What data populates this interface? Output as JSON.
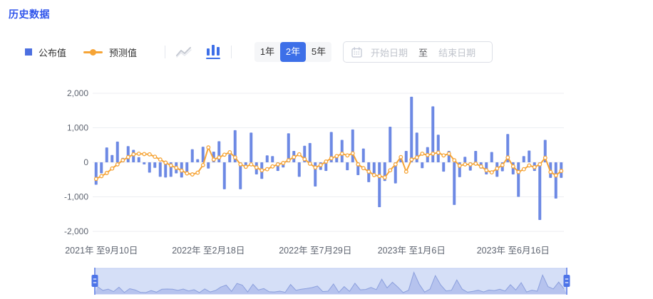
{
  "page": {
    "title": "历史数据"
  },
  "legend": {
    "published": {
      "label": "公布值"
    },
    "forecast": {
      "label": "预测值"
    }
  },
  "toolbar": {
    "chart_types": [
      {
        "name": "line-chart-icon",
        "active": false
      },
      {
        "name": "bar-chart-icon",
        "active": true
      }
    ],
    "ranges": [
      {
        "label": "1年",
        "active": false
      },
      {
        "label": "2年",
        "active": true
      },
      {
        "label": "5年",
        "active": false
      }
    ],
    "date_picker": {
      "start_placeholder": "开始日期",
      "separator": "至",
      "end_placeholder": "结束日期"
    }
  },
  "colors": {
    "title_blue": "#2f54eb",
    "bar_blue": "#6d89e4",
    "legend_blue": "#4c6fe0",
    "line_orange": "#f6a436",
    "grid_line": "#eceef2",
    "axis_text": "#5e6470",
    "active_button_bg": "#3d6fe8",
    "slider_track": "#d5dff7",
    "slider_area_fill": "#b3c0ec",
    "slider_area_line": "#8ca0dd",
    "slider_handle": "#4d74e8"
  },
  "chart_data": {
    "type": "bar",
    "title": "历史数据",
    "xlabel": "",
    "ylabel": "",
    "ylim": [
      -2000,
      2000
    ],
    "grid": true,
    "legend_position": "top-left",
    "y_ticks": [
      {
        "value": 2000,
        "label": "2,000"
      },
      {
        "value": 1000,
        "label": "1,000"
      },
      {
        "value": 0,
        "label": "0"
      },
      {
        "value": -1000,
        "label": "-1,000"
      },
      {
        "value": -2000,
        "label": "-2,000"
      }
    ],
    "x_tick_labels": [
      {
        "index": 1,
        "text": "2021年 至9月10日"
      },
      {
        "index": 21,
        "text": "2022年 至2月18日"
      },
      {
        "index": 41,
        "text": "2022年 至7月29日"
      },
      {
        "index": 59,
        "text": "2023年 至1月6日"
      },
      {
        "index": 78,
        "text": "2023年 至6月16日"
      }
    ],
    "series": [
      {
        "name": "公布值",
        "type": "bar",
        "color": "#6d89e4",
        "values": [
          -650,
          -320,
          430,
          210,
          600,
          130,
          470,
          360,
          150,
          -60,
          -300,
          -160,
          -420,
          -440,
          -420,
          -320,
          -440,
          -270,
          380,
          90,
          450,
          -180,
          310,
          610,
          -780,
          230,
          930,
          -780,
          -180,
          860,
          -350,
          -480,
          200,
          180,
          -250,
          -150,
          840,
          330,
          -420,
          480,
          560,
          -700,
          -220,
          -250,
          880,
          150,
          650,
          -230,
          950,
          -370,
          400,
          -575,
          -390,
          -1300,
          -540,
          1030,
          -610,
          110,
          330,
          1900,
          860,
          -170,
          440,
          1620,
          800,
          -270,
          330,
          -1235,
          -430,
          160,
          -240,
          330,
          -180,
          -350,
          300,
          -420,
          -260,
          820,
          -350,
          -1000,
          180,
          340,
          -250,
          -1670,
          650,
          -450,
          -1050,
          -450
        ]
      },
      {
        "name": "预测值",
        "type": "line",
        "color": "#f6a436",
        "values": [
          -480,
          -400,
          -310,
          -180,
          -60,
          60,
          150,
          230,
          250,
          240,
          230,
          160,
          80,
          -10,
          -90,
          -160,
          -240,
          -320,
          -350,
          -300,
          -80,
          430,
          80,
          140,
          220,
          290,
          140,
          -60,
          -130,
          -60,
          -150,
          -230,
          -200,
          -120,
          -60,
          -20,
          60,
          150,
          230,
          90,
          -40,
          -150,
          -80,
          20,
          120,
          180,
          250,
          200,
          260,
          -60,
          -170,
          -270,
          -370,
          -400,
          -440,
          -230,
          -60,
          150,
          -270,
          80,
          140,
          250,
          210,
          250,
          280,
          200,
          250,
          60,
          -100,
          -60,
          -60,
          -40,
          -120,
          -230,
          -290,
          -180,
          -80,
          140,
          -120,
          -280,
          -200,
          -90,
          -140,
          -60,
          130,
          -280,
          -380,
          -250
        ]
      }
    ],
    "data_zoom": {
      "start_percent": 0,
      "end_percent": 100
    }
  }
}
